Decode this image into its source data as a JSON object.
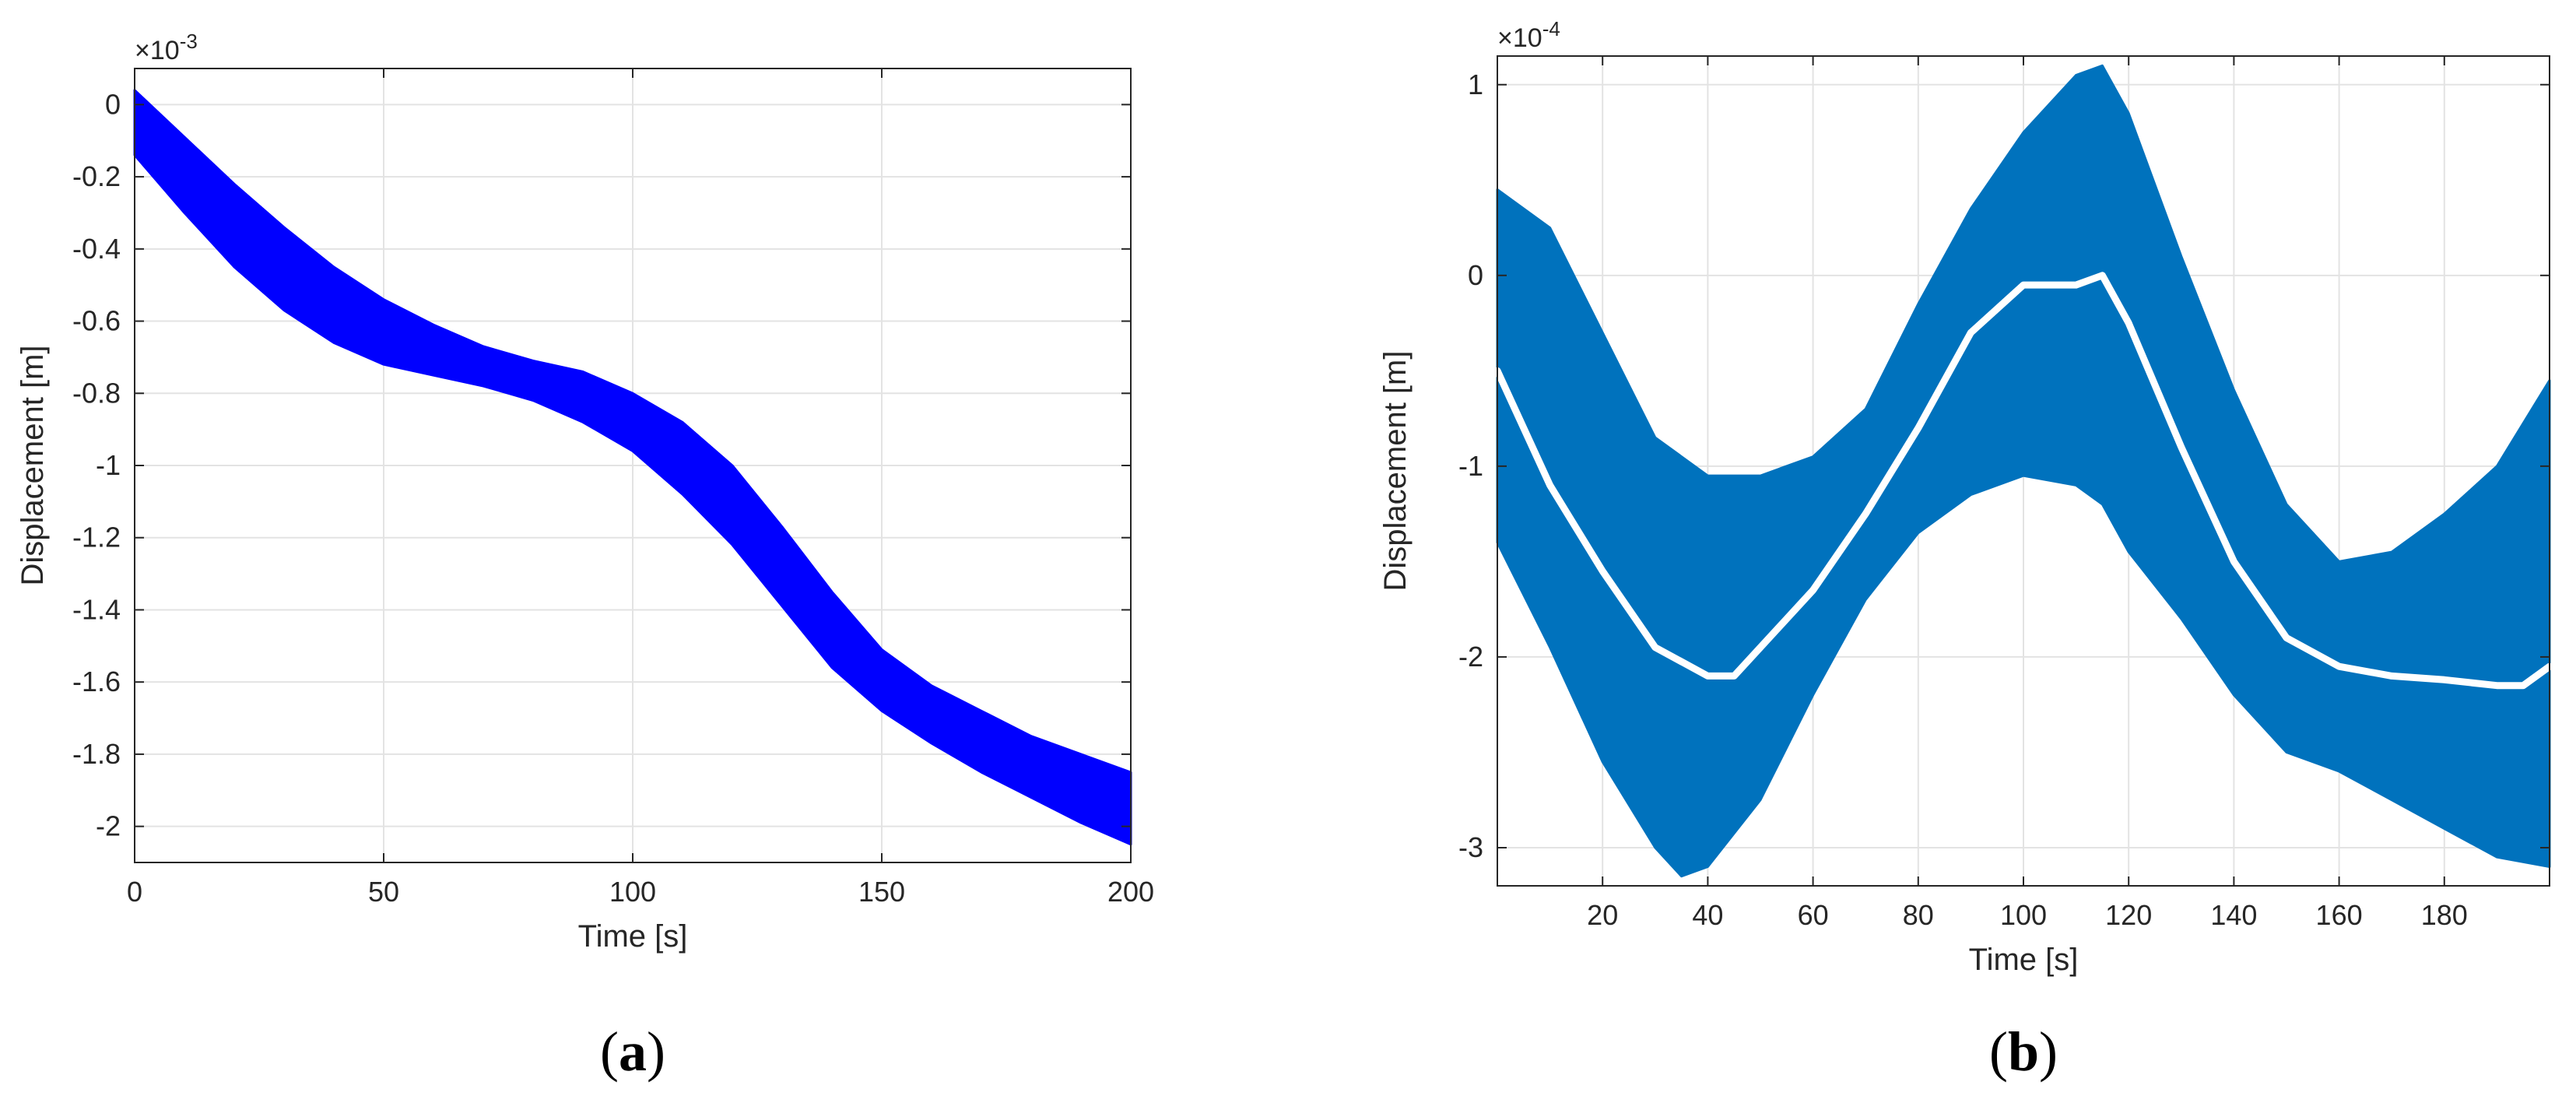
{
  "chart_data": [
    {
      "id": "a",
      "panel_label": "a",
      "type": "area",
      "xlabel": "Time [s]",
      "ylabel": "Displacement [m]",
      "y_exponent": "-3",
      "xlim": [
        0,
        200
      ],
      "ylim": [
        -2.1,
        0.1
      ],
      "xticks": [
        0,
        50,
        100,
        150,
        200
      ],
      "xtick_labels": [
        "0",
        "50",
        "100",
        "150",
        "200"
      ],
      "yticks": [
        0,
        -0.2,
        -0.4,
        -0.6,
        -0.8,
        -1,
        -1.2,
        -1.4,
        -1.6,
        -1.8,
        -2
      ],
      "ytick_labels": [
        "0",
        "-0.2",
        "-0.4",
        "-0.6",
        "-0.8",
        "-1",
        "-1.2",
        "-1.4",
        "-1.6",
        "-1.8",
        "-2"
      ],
      "grid": true,
      "color": "#0000ff",
      "series": [
        {
          "role": "upper_envelope",
          "x": [
            0,
            10,
            20,
            30,
            40,
            50,
            60,
            70,
            80,
            90,
            100,
            110,
            120,
            130,
            140,
            150,
            160,
            170,
            180,
            190,
            200
          ],
          "y": [
            0.04,
            -0.09,
            -0.22,
            -0.34,
            -0.45,
            -0.54,
            -0.61,
            -0.67,
            -0.71,
            -0.74,
            -0.8,
            -0.88,
            -1.0,
            -1.17,
            -1.35,
            -1.51,
            -1.61,
            -1.68,
            -1.75,
            -1.8,
            -1.85
          ]
        },
        {
          "role": "lower_envelope",
          "x": [
            0,
            10,
            20,
            30,
            40,
            50,
            60,
            70,
            80,
            90,
            100,
            110,
            120,
            130,
            140,
            150,
            160,
            170,
            180,
            190,
            200
          ],
          "y": [
            -0.14,
            -0.3,
            -0.45,
            -0.57,
            -0.66,
            -0.72,
            -0.75,
            -0.78,
            -0.82,
            -0.88,
            -0.96,
            -1.08,
            -1.22,
            -1.39,
            -1.56,
            -1.68,
            -1.77,
            -1.85,
            -1.92,
            -1.99,
            -2.05
          ]
        }
      ]
    },
    {
      "id": "b",
      "panel_label": "b",
      "type": "area",
      "xlabel": "Time [s]",
      "ylabel": "Displacement [m]",
      "y_exponent": "-4",
      "xlim": [
        0,
        200
      ],
      "ylim": [
        -3.2,
        1.15
      ],
      "xticks": [
        20,
        40,
        60,
        80,
        100,
        120,
        140,
        160,
        180
      ],
      "xtick_labels": [
        "20",
        "40",
        "60",
        "80",
        "100",
        "120",
        "140",
        "160",
        "180"
      ],
      "yticks": [
        1,
        0,
        -1,
        -2,
        -3
      ],
      "ytick_labels": [
        "1",
        "0",
        "-1",
        "-2",
        "-3"
      ],
      "grid": true,
      "color": "#0072bd",
      "mean_color": "#ffffff",
      "series": [
        {
          "role": "upper_envelope",
          "x": [
            0,
            10,
            20,
            30,
            40,
            50,
            60,
            70,
            80,
            90,
            100,
            110,
            115,
            120,
            130,
            140,
            150,
            160,
            170,
            180,
            190,
            200
          ],
          "y": [
            0.45,
            0.25,
            -0.3,
            -0.85,
            -1.05,
            -1.05,
            -0.95,
            -0.7,
            -0.15,
            0.35,
            0.75,
            1.05,
            1.1,
            0.85,
            0.1,
            -0.6,
            -1.2,
            -1.5,
            -1.45,
            -1.25,
            -1.0,
            -0.55
          ]
        },
        {
          "role": "lower_envelope",
          "x": [
            0,
            10,
            20,
            30,
            35,
            40,
            50,
            60,
            70,
            80,
            90,
            100,
            110,
            115,
            120,
            130,
            140,
            150,
            160,
            170,
            180,
            190,
            200
          ],
          "y": [
            -1.4,
            -1.95,
            -2.55,
            -3.0,
            -3.15,
            -3.1,
            -2.75,
            -2.2,
            -1.7,
            -1.35,
            -1.15,
            -1.05,
            -1.1,
            -1.2,
            -1.45,
            -1.8,
            -2.2,
            -2.5,
            -2.6,
            -2.75,
            -2.9,
            -3.05,
            -3.1
          ]
        },
        {
          "role": "mean",
          "x": [
            0,
            10,
            20,
            30,
            40,
            45,
            50,
            60,
            70,
            80,
            90,
            100,
            110,
            115,
            120,
            130,
            140,
            150,
            160,
            170,
            180,
            190,
            195,
            200
          ],
          "y": [
            -0.5,
            -1.1,
            -1.55,
            -1.95,
            -2.1,
            -2.1,
            -1.95,
            -1.65,
            -1.25,
            -0.8,
            -0.3,
            -0.05,
            -0.05,
            0.0,
            -0.25,
            -0.9,
            -1.5,
            -1.9,
            -2.05,
            -2.1,
            -2.12,
            -2.15,
            -2.15,
            -2.05
          ]
        }
      ]
    }
  ]
}
